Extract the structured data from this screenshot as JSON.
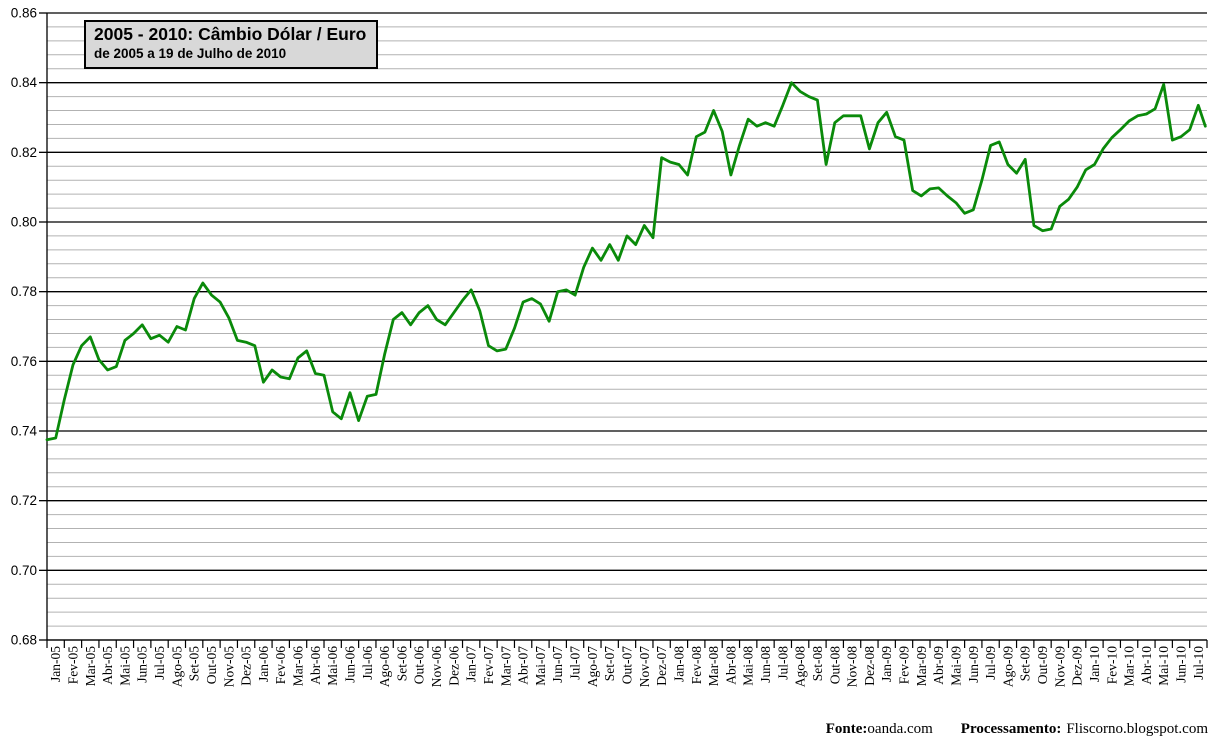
{
  "page": {
    "background": "#ffffff"
  },
  "title_box": {
    "title": "2005 - 2010: Câmbio Dólar / Euro",
    "subtitle": "de 2005 a 19 de Julho de 2010"
  },
  "footer": {
    "source_label": "Fonte:",
    "source_value": "oanda.com",
    "processing_label": "Processamento:",
    "processing_value": "Fliscorno.blogspot.com"
  },
  "chart_data": {
    "type": "line",
    "title": "2005 - 2010: Câmbio Dólar / Euro",
    "subtitle": "de 2005 a 19 de Julho de 2010",
    "xlabel": "",
    "ylabel": "",
    "ylim": [
      0.68,
      0.86
    ],
    "y_major_step": 0.02,
    "y_minor_step": 0.004,
    "grid": {
      "major_color": "#000000",
      "minor_color": "#b2b2b2",
      "major_on": true,
      "minor_on": true
    },
    "legend_position": "none",
    "line_color": "#0a8a0a",
    "line_width": 2.8,
    "x_tick_labels": [
      "Jan-05",
      "Fev-05",
      "Mar-05",
      "Abr-05",
      "Mai-05",
      "Jun-05",
      "Jul-05",
      "Ago-05",
      "Set-05",
      "Out-05",
      "Nov-05",
      "Dez-05",
      "Jan-06",
      "Fev-06",
      "Mar-06",
      "Abr-06",
      "Mai-06",
      "Jun-06",
      "Jul-06",
      "Ago-06",
      "Set-06",
      "Out-06",
      "Nov-06",
      "Dez-06",
      "Jan-07",
      "Fev-07",
      "Mar-07",
      "Abr-07",
      "Mai-07",
      "Jun-07",
      "Jul-07",
      "Ago-07",
      "Set-07",
      "Out-07",
      "Nov-07",
      "Dez-07",
      "Jan-08",
      "Fev-08",
      "Mar-08",
      "Abr-08",
      "Mai-08",
      "Jun-08",
      "Jul-08",
      "Ago-08",
      "Set-08",
      "Out-08",
      "Nov-08",
      "Dez-08",
      "Jan-09",
      "Fev-09",
      "Mar-09",
      "Abr-09",
      "Mai-09",
      "Jun-09",
      "Jul-09",
      "Ago-09",
      "Set-09",
      "Out-09",
      "Nov-09",
      "Dez-09",
      "Jan-10",
      "Fev-10",
      "Mar-10",
      "Abr-10",
      "Mai-10",
      "Jun-10",
      "Jul-10"
    ],
    "x_months_total": 67,
    "series": [
      {
        "name": "Câmbio Dólar / Euro",
        "color": "#0a8a0a",
        "points_t_months_value": [
          [
            0,
            0.7375
          ],
          [
            0.5,
            0.738
          ],
          [
            1,
            0.749
          ],
          [
            1.5,
            0.759
          ],
          [
            2,
            0.7645
          ],
          [
            2.5,
            0.767
          ],
          [
            3,
            0.7605
          ],
          [
            3.5,
            0.7575
          ],
          [
            4,
            0.7585
          ],
          [
            4.5,
            0.766
          ],
          [
            5,
            0.768
          ],
          [
            5.5,
            0.7705
          ],
          [
            6,
            0.7665
          ],
          [
            6.5,
            0.7675
          ],
          [
            7,
            0.7655
          ],
          [
            7.5,
            0.77
          ],
          [
            8,
            0.769
          ],
          [
            8.5,
            0.778
          ],
          [
            9,
            0.7825
          ],
          [
            9.5,
            0.779
          ],
          [
            10,
            0.777
          ],
          [
            10.5,
            0.7725
          ],
          [
            11,
            0.766
          ],
          [
            11.5,
            0.7655
          ],
          [
            12,
            0.7645
          ],
          [
            12.5,
            0.754
          ],
          [
            13,
            0.7575
          ],
          [
            13.5,
            0.7555
          ],
          [
            14,
            0.755
          ],
          [
            14.5,
            0.761
          ],
          [
            15,
            0.763
          ],
          [
            15.5,
            0.7565
          ],
          [
            16,
            0.756
          ],
          [
            16.5,
            0.7455
          ],
          [
            17,
            0.7435
          ],
          [
            17.5,
            0.751
          ],
          [
            18,
            0.743
          ],
          [
            18.5,
            0.75
          ],
          [
            19,
            0.7505
          ],
          [
            19.5,
            0.762
          ],
          [
            20,
            0.772
          ],
          [
            20.5,
            0.774
          ],
          [
            21,
            0.7705
          ],
          [
            21.5,
            0.774
          ],
          [
            22,
            0.776
          ],
          [
            22.5,
            0.772
          ],
          [
            23,
            0.7705
          ],
          [
            23.5,
            0.774
          ],
          [
            24,
            0.7775
          ],
          [
            24.5,
            0.7805
          ],
          [
            25,
            0.7745
          ],
          [
            25.5,
            0.7645
          ],
          [
            26,
            0.763
          ],
          [
            26.5,
            0.7635
          ],
          [
            27,
            0.7695
          ],
          [
            27.5,
            0.777
          ],
          [
            28,
            0.778
          ],
          [
            28.5,
            0.7765
          ],
          [
            29,
            0.7715
          ],
          [
            29.5,
            0.78
          ],
          [
            30,
            0.7805
          ],
          [
            30.5,
            0.779
          ],
          [
            31,
            0.787
          ],
          [
            31.5,
            0.7925
          ],
          [
            32,
            0.789
          ],
          [
            32.5,
            0.7935
          ],
          [
            33,
            0.789
          ],
          [
            33.5,
            0.796
          ],
          [
            34,
            0.7935
          ],
          [
            34.5,
            0.799
          ],
          [
            35,
            0.7955
          ],
          [
            35.5,
            0.8185
          ],
          [
            36,
            0.8172
          ],
          [
            36.5,
            0.8165
          ],
          [
            37,
            0.8135
          ],
          [
            37.5,
            0.8245
          ],
          [
            38,
            0.8258
          ],
          [
            38.5,
            0.832
          ],
          [
            39,
            0.826
          ],
          [
            39.5,
            0.8135
          ],
          [
            40,
            0.822
          ],
          [
            40.5,
            0.8295
          ],
          [
            41,
            0.8275
          ],
          [
            41.5,
            0.8285
          ],
          [
            42,
            0.8275
          ],
          [
            42.5,
            0.8335
          ],
          [
            43,
            0.84
          ],
          [
            43.5,
            0.8375
          ],
          [
            44,
            0.836
          ],
          [
            44.5,
            0.835
          ],
          [
            45,
            0.8165
          ],
          [
            45.5,
            0.8285
          ],
          [
            46,
            0.8305
          ],
          [
            46.5,
            0.8305
          ],
          [
            47,
            0.8305
          ],
          [
            47.5,
            0.821
          ],
          [
            48,
            0.8285
          ],
          [
            48.5,
            0.8315
          ],
          [
            49,
            0.8245
          ],
          [
            49.5,
            0.8235
          ],
          [
            50,
            0.809
          ],
          [
            50.5,
            0.8075
          ],
          [
            51,
            0.8095
          ],
          [
            51.5,
            0.8098
          ],
          [
            52,
            0.8075
          ],
          [
            52.5,
            0.8055
          ],
          [
            53,
            0.8025
          ],
          [
            53.5,
            0.8035
          ],
          [
            54,
            0.812
          ],
          [
            54.5,
            0.822
          ],
          [
            55,
            0.823
          ],
          [
            55.5,
            0.8165
          ],
          [
            56,
            0.814
          ],
          [
            56.5,
            0.818
          ],
          [
            57,
            0.799
          ],
          [
            57.5,
            0.7975
          ],
          [
            58,
            0.798
          ],
          [
            58.5,
            0.8045
          ],
          [
            59,
            0.8065
          ],
          [
            59.5,
            0.81
          ],
          [
            60,
            0.815
          ],
          [
            60.5,
            0.8165
          ],
          [
            61,
            0.821
          ],
          [
            61.5,
            0.8242
          ],
          [
            62,
            0.8265
          ],
          [
            62.5,
            0.829
          ],
          [
            63,
            0.8305
          ],
          [
            63.5,
            0.831
          ],
          [
            64,
            0.8325
          ],
          [
            64.5,
            0.8395
          ],
          [
            65,
            0.8235
          ],
          [
            65.5,
            0.8245
          ],
          [
            66,
            0.8265
          ],
          [
            66.5,
            0.8335
          ],
          [
            66.9,
            0.8275
          ]
        ]
      }
    ]
  }
}
